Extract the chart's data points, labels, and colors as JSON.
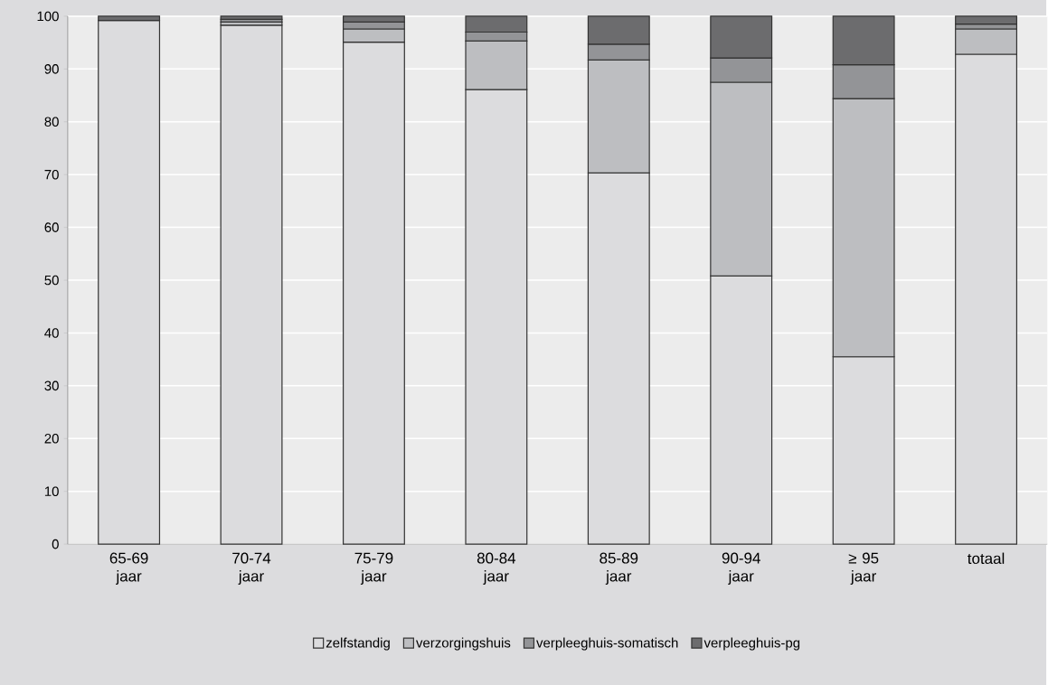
{
  "chart_data": {
    "type": "bar",
    "stacked": true,
    "categories": [
      "65-69 jaar",
      "70-74 jaar",
      "75-79 jaar",
      "80-84 jaar",
      "85-89 jaar",
      "90-94 jaar",
      "≥ 95 jaar",
      "totaal"
    ],
    "series": [
      {
        "name": "zelfstandig",
        "color": "#dcdcde",
        "values": [
          99.2,
          98.3,
          95.1,
          86.1,
          70.3,
          50.8,
          35.5,
          92.8
        ]
      },
      {
        "name": "verzorgingshuis",
        "color": "#bdbec1",
        "values": [
          null,
          0.6,
          2.5,
          9.2,
          21.4,
          36.7,
          48.9,
          4.8
        ]
      },
      {
        "name": "verpleeghuis-somatisch",
        "color": "#939497",
        "values": [
          null,
          0.5,
          1.3,
          1.7,
          3.0,
          4.6,
          6.4,
          0.9
        ]
      },
      {
        "name": "verpleeghuis-pg",
        "color": "#6c6c6e",
        "values": [
          0.8,
          0.6,
          1.1,
          3.0,
          5.3,
          7.9,
          9.2,
          1.5
        ]
      }
    ],
    "ylim": [
      0,
      100
    ],
    "yticks": [
      0,
      10,
      20,
      30,
      40,
      50,
      60,
      70,
      80,
      90,
      100
    ],
    "grid": "y",
    "legend": "bottom"
  }
}
